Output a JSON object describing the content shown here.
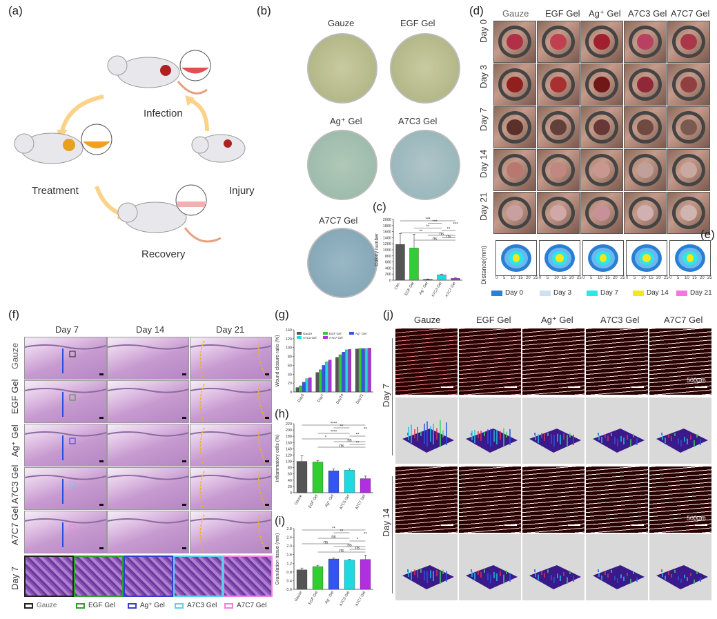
{
  "panels": {
    "a": {
      "label": "(a)",
      "steps": [
        "Infection",
        "Injury",
        "Treatment",
        "Recovery"
      ]
    },
    "b": {
      "label": "(b)",
      "dishes": [
        "Gauze",
        "EGF Gel",
        "Ag⁺ Gel",
        "A7C3 Gel",
        "A7C7 Gel"
      ]
    },
    "c": {
      "label": "(c)"
    },
    "d": {
      "label": "(d)",
      "columns": [
        "Gauze",
        "EGF Gel",
        "Ag⁺ Gel",
        "A7C3 Gel",
        "A7C7 Gel"
      ],
      "rows": [
        "Day 0",
        "Day 3",
        "Day 7",
        "Day 14",
        "Day 21"
      ]
    },
    "e": {
      "label": "(e)",
      "ylabel": "Distance(mm)",
      "legend": [
        "Day 0",
        "Day 3",
        "Day 7",
        "Day 14",
        "Day 21"
      ],
      "legend_colors": [
        "#2a7fd4",
        "#cfe0f0",
        "#2ee6e6",
        "#f2e81a",
        "#f078e0"
      ],
      "ticks": [
        "0",
        "5",
        "10",
        "15",
        "20",
        "25"
      ]
    },
    "f": {
      "label": "(f)",
      "columns": [
        "Day 7",
        "Day 14",
        "Day 21"
      ],
      "rows": [
        "Gauze",
        "EGF Gel",
        "Ag⁺ Gel",
        "A7C3 Gel",
        "A7C7 Gel"
      ],
      "zoom_row": "Day 7",
      "legend": [
        "Gauze",
        "EGF Gel",
        "Ag⁺ Gel",
        "A7C3 Gel",
        "A7C7 Gel"
      ],
      "legend_colors": [
        "#222222",
        "#2ca02c",
        "#3a3ad0",
        "#5ad0f0",
        "#f080e0"
      ]
    },
    "g": {
      "label": "(g)"
    },
    "h": {
      "label": "(h)"
    },
    "i": {
      "label": "(i)"
    },
    "j": {
      "label": "(j)",
      "columns": [
        "Gauze",
        "EGF Gel",
        "Ag⁺ Gel",
        "A7C3 Gel",
        "A7C7 Gel"
      ],
      "rows": [
        "Day 7",
        "Day 14"
      ],
      "scale": "500μm"
    }
  },
  "chart_data": [
    {
      "id": "c",
      "type": "bar",
      "ylabel": "Colony number",
      "categories": [
        "Con.",
        "EGF Gel",
        "Ag⁺ Gel",
        "A7C3 Gel",
        "A7C7 Gel"
      ],
      "values": [
        1180,
        1060,
        30,
        180,
        60
      ],
      "errors": [
        350,
        450,
        10,
        20,
        30
      ],
      "colors": [
        "#555555",
        "#33cc33",
        "#3355ee",
        "#22d8e0",
        "#b030e0"
      ],
      "ylim": [
        0,
        2000
      ],
      "yticks": [
        "0",
        "200",
        "400",
        "600",
        "800",
        "1000",
        "1200",
        "1400",
        "1600",
        "1800",
        "2000"
      ],
      "significance": [
        "***",
        "***",
        "***",
        "**",
        "**",
        "**",
        "ns",
        "ns",
        "ns"
      ]
    },
    {
      "id": "g",
      "type": "bar",
      "ylabel": "Wound closure ratio (%)",
      "categories": [
        "Day3",
        "Day7",
        "Day14",
        "Day21"
      ],
      "series": [
        {
          "name": "Gauze",
          "values": [
            10,
            44,
            78,
            97
          ],
          "color": "#555555"
        },
        {
          "name": "EGF Gel",
          "values": [
            14,
            50,
            84,
            98
          ],
          "color": "#33cc33"
        },
        {
          "name": "Ag⁺ Gel",
          "values": [
            22,
            60,
            90,
            98
          ],
          "color": "#3355ee"
        },
        {
          "name": "A7C3 Gel",
          "values": [
            30,
            68,
            95,
            98
          ],
          "color": "#22d8e0"
        },
        {
          "name": "A7C7 Gel",
          "values": [
            32,
            72,
            96,
            99
          ],
          "color": "#b030e0"
        }
      ],
      "ylim": [
        0,
        140
      ],
      "yticks": [
        "0",
        "20",
        "40",
        "60",
        "80",
        "100",
        "120",
        "140"
      ]
    },
    {
      "id": "h",
      "type": "bar",
      "ylabel": "Inflammatory cells (%)",
      "categories": [
        "Gauze",
        "EGF Gel",
        "Ag⁺ Gel",
        "A7C3 Gel",
        "A7C7 Gel"
      ],
      "values": [
        100,
        98,
        70,
        72,
        45
      ],
      "errors": [
        18,
        4,
        6,
        4,
        8
      ],
      "colors": [
        "#555555",
        "#33cc33",
        "#3355ee",
        "#22d8e0",
        "#b030e0"
      ],
      "ylim": [
        0,
        220
      ],
      "yticks": [
        "0",
        "20",
        "40",
        "60",
        "80",
        "100",
        "120",
        "140",
        "160",
        "180",
        "200",
        "220"
      ],
      "significance": [
        "****",
        "**",
        "**",
        "****",
        "**",
        "*",
        "ns",
        "**",
        "ns"
      ]
    },
    {
      "id": "i",
      "type": "bar",
      "ylabel": "Granulation tissue (mm)",
      "categories": [
        "Gauze",
        "EGF Gel",
        "Ag⁺ Gel",
        "A7C3 Gel",
        "A7C7 Gel"
      ],
      "values": [
        0.9,
        1.05,
        1.4,
        1.35,
        1.38
      ],
      "errors": [
        0.08,
        0.06,
        0.04,
        0.03,
        0.2
      ],
      "colors": [
        "#555555",
        "#33cc33",
        "#3355ee",
        "#22d8e0",
        "#b030e0"
      ],
      "ylim": [
        0,
        2.8
      ],
      "yticks": [
        "0.0",
        "0.4",
        "0.8",
        "1.2",
        "1.6",
        "2.0",
        "2.4",
        "2.8"
      ],
      "significance": [
        "**",
        "**",
        "**",
        "ns",
        "*",
        "ns",
        "ns",
        "ns",
        "ns"
      ]
    }
  ]
}
